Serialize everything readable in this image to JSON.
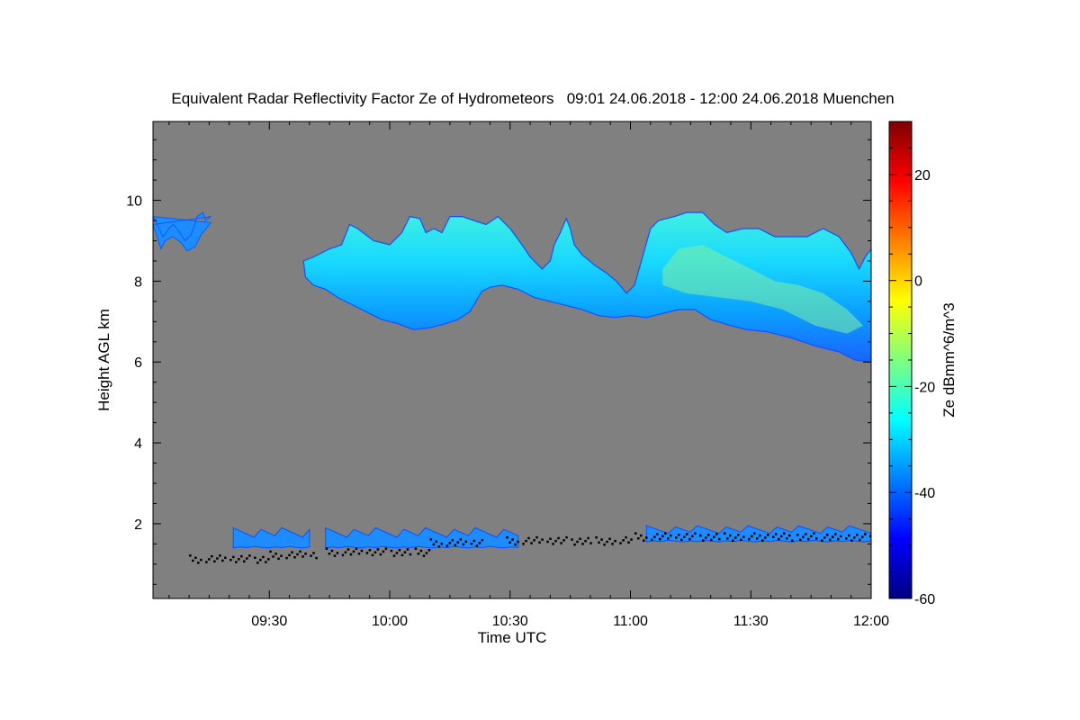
{
  "chart_data": {
    "type": "heatmap",
    "title": "Equivalent Radar Reflectivity Factor Ze of Hydrometeors   09:01 24.06.2018 - 12:00 24.06.2018 Muenchen",
    "xlabel": "Time UTC",
    "ylabel": "Height AGL km",
    "colorbar_label": "Ze dBmm^6/m^3",
    "x_range_minutes": [
      541,
      720
    ],
    "x_ticks": [
      {
        "label": "09:30",
        "minutes": 570
      },
      {
        "label": "10:00",
        "minutes": 600
      },
      {
        "label": "10:30",
        "minutes": 630
      },
      {
        "label": "11:00",
        "minutes": 660
      },
      {
        "label": "11:30",
        "minutes": 690
      },
      {
        "label": "12:00",
        "minutes": 720
      }
    ],
    "ylim": [
      0.15,
      11.95
    ],
    "y_ticks": [
      2,
      4,
      6,
      8,
      10
    ],
    "colorbar_range": [
      -60,
      30
    ],
    "colorbar_ticks": [
      -60,
      -40,
      -20,
      0,
      20
    ],
    "colormap": [
      "#00007f",
      "#0000ff",
      "#007fff",
      "#00ffff",
      "#7fff7f",
      "#ffff00",
      "#ff7f00",
      "#ff0000",
      "#7f0000"
    ],
    "background_color": "#808080",
    "upper_cloud": {
      "top_km": [
        [
          541.0,
          9.6
        ],
        [
          542.0,
          9.4
        ],
        [
          543.5,
          9.1
        ],
        [
          545.0,
          9.3
        ],
        [
          546.0,
          9.4
        ],
        [
          547.0,
          9.3
        ],
        [
          549.0,
          9.0
        ],
        [
          550.5,
          9.15
        ],
        [
          552.0,
          9.6
        ],
        [
          553.5,
          9.7
        ],
        [
          554.0,
          9.5
        ],
        [
          555.5,
          9.6
        ]
      ],
      "base_km": [
        [
          541.0,
          9.4
        ],
        [
          542.0,
          9.1
        ],
        [
          543.0,
          8.8
        ],
        [
          544.0,
          9.0
        ],
        [
          546.0,
          9.1
        ],
        [
          548.0,
          8.95
        ],
        [
          549.5,
          8.75
        ],
        [
          551.5,
          8.85
        ],
        [
          553.0,
          9.15
        ],
        [
          555.5,
          9.45
        ]
      ]
    },
    "main_cloud": {
      "top_km": [
        [
          578.5,
          8.5
        ],
        [
          581.0,
          8.6
        ],
        [
          585.0,
          8.8
        ],
        [
          588.0,
          8.9
        ],
        [
          590.0,
          9.4
        ],
        [
          592.0,
          9.3
        ],
        [
          596.0,
          9.0
        ],
        [
          600.0,
          8.9
        ],
        [
          603.0,
          9.2
        ],
        [
          605.0,
          9.6
        ],
        [
          607.5,
          9.55
        ],
        [
          609.0,
          9.2
        ],
        [
          611.0,
          9.3
        ],
        [
          613.0,
          9.2
        ],
        [
          615.0,
          9.6
        ],
        [
          618.0,
          9.6
        ],
        [
          621.0,
          9.5
        ],
        [
          624.0,
          9.4
        ],
        [
          627.0,
          9.6
        ],
        [
          630.0,
          9.3
        ],
        [
          633.0,
          8.9
        ],
        [
          635.0,
          8.6
        ],
        [
          638.0,
          8.3
        ],
        [
          640.0,
          8.5
        ],
        [
          641.0,
          8.9
        ],
        [
          642.5,
          9.2
        ],
        [
          644.0,
          9.55
        ],
        [
          645.0,
          9.3
        ],
        [
          646.0,
          8.9
        ],
        [
          648.0,
          8.65
        ],
        [
          651.0,
          8.4
        ],
        [
          654.0,
          8.2
        ],
        [
          656.5,
          8.0
        ],
        [
          659.0,
          7.7
        ],
        [
          661.0,
          7.9
        ],
        [
          663.0,
          8.6
        ],
        [
          665.0,
          9.3
        ],
        [
          667.0,
          9.5
        ],
        [
          671.0,
          9.6
        ],
        [
          674.0,
          9.7
        ],
        [
          678.0,
          9.7
        ],
        [
          681.0,
          9.4
        ],
        [
          684.0,
          9.2
        ],
        [
          688.0,
          9.3
        ],
        [
          692.0,
          9.3
        ],
        [
          696.0,
          9.1
        ],
        [
          700.0,
          9.1
        ],
        [
          704.0,
          9.1
        ],
        [
          708.0,
          9.3
        ],
        [
          712.0,
          9.1
        ],
        [
          715.0,
          8.7
        ],
        [
          717.0,
          8.3
        ],
        [
          718.5,
          8.6
        ],
        [
          720.0,
          8.8
        ]
      ],
      "base_km": [
        [
          720.0,
          6.0
        ],
        [
          716.0,
          6.05
        ],
        [
          712.0,
          6.25
        ],
        [
          706.0,
          6.4
        ],
        [
          700.0,
          6.6
        ],
        [
          694.0,
          6.75
        ],
        [
          689.0,
          6.8
        ],
        [
          685.0,
          6.9
        ],
        [
          680.0,
          7.05
        ],
        [
          676.0,
          7.3
        ],
        [
          672.0,
          7.3
        ],
        [
          668.0,
          7.2
        ],
        [
          664.0,
          7.1
        ],
        [
          660.0,
          7.15
        ],
        [
          656.0,
          7.1
        ],
        [
          652.0,
          7.15
        ],
        [
          648.0,
          7.3
        ],
        [
          644.0,
          7.4
        ],
        [
          640.0,
          7.5
        ],
        [
          636.0,
          7.6
        ],
        [
          632.0,
          7.8
        ],
        [
          628.0,
          7.9
        ],
        [
          625.0,
          7.85
        ],
        [
          623.0,
          7.75
        ],
        [
          620.0,
          7.25
        ],
        [
          617.0,
          7.05
        ],
        [
          614.0,
          6.95
        ],
        [
          610.0,
          6.85
        ],
        [
          606.0,
          6.8
        ],
        [
          602.0,
          6.95
        ],
        [
          598.0,
          7.05
        ],
        [
          595.0,
          7.2
        ],
        [
          591.0,
          7.4
        ],
        [
          587.0,
          7.6
        ],
        [
          584.0,
          7.8
        ],
        [
          581.0,
          7.9
        ],
        [
          579.0,
          8.1
        ]
      ]
    },
    "high_core": {
      "outline_km": [
        [
          668.0,
          8.3
        ],
        [
          672.0,
          8.8
        ],
        [
          678.0,
          8.9
        ],
        [
          684.0,
          8.6
        ],
        [
          690.0,
          8.3
        ],
        [
          696.0,
          8.0
        ],
        [
          702.0,
          7.9
        ],
        [
          708.0,
          7.7
        ],
        [
          714.0,
          7.3
        ],
        [
          718.0,
          6.9
        ],
        [
          714.0,
          6.7
        ],
        [
          706.0,
          6.9
        ],
        [
          698.0,
          7.3
        ],
        [
          690.0,
          7.5
        ],
        [
          682.0,
          7.6
        ],
        [
          674.0,
          7.7
        ],
        [
          668.0,
          7.9
        ]
      ]
    },
    "low_cloud_segments": [
      {
        "minutes": [
          561,
          580
        ],
        "base_km": 1.4,
        "top_km": 1.9
      },
      {
        "minutes": [
          584,
          632
        ],
        "base_km": 1.4,
        "top_km": 1.9
      },
      {
        "minutes": [
          664,
          720
        ],
        "base_km": 1.55,
        "top_km": 1.95
      }
    ],
    "ceilometer_segments": [
      {
        "minutes": [
          550,
          570
        ],
        "height_km": 1.15
      },
      {
        "minutes": [
          570,
          582
        ],
        "height_km": 1.25
      },
      {
        "minutes": [
          584,
          610
        ],
        "height_km": 1.32
      },
      {
        "minutes": [
          610,
          623
        ],
        "height_km": 1.55
      },
      {
        "minutes": [
          629,
          660
        ],
        "height_km": 1.6
      },
      {
        "minutes": [
          661,
          720
        ],
        "height_km": 1.7
      }
    ]
  }
}
